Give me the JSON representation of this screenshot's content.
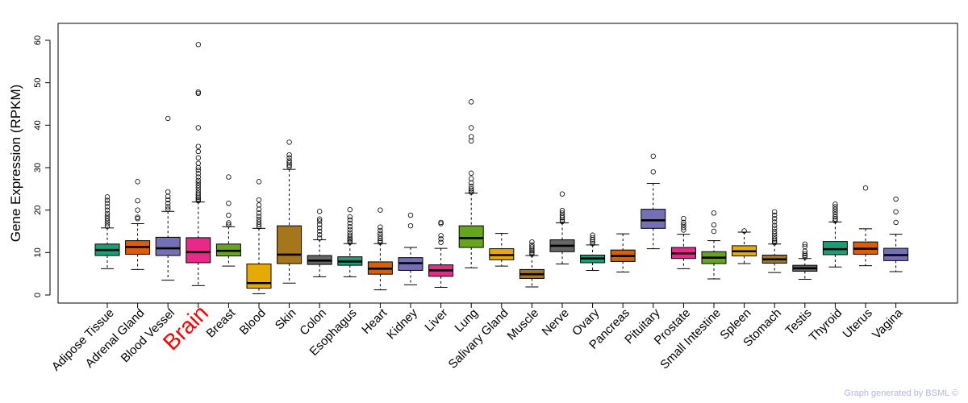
{
  "chart_data": {
    "type": "boxplot",
    "ylabel": "Gene Expression (RPKM)",
    "xlabel": "",
    "ylim": [
      0,
      60
    ],
    "yticks": [
      0,
      10,
      20,
      30,
      40,
      50,
      60
    ],
    "highlight": "Brain",
    "highlight_color": "#ff0000",
    "series": [
      {
        "name": "Adipose Tissue",
        "color": "#1b9e77",
        "q1": 9.3,
        "median": 10.6,
        "q3": 12.0,
        "lo": 6.2,
        "hi": 15.8,
        "outliers": [
          16.2,
          16.8,
          17.4,
          18.0,
          18.6,
          19.2,
          20.0,
          20.8,
          21.6,
          22.3,
          23.1
        ]
      },
      {
        "name": "Adrenal Gland",
        "color": "#d95f02",
        "q1": 9.6,
        "median": 11.3,
        "q3": 12.8,
        "lo": 6.0,
        "hi": 16.8,
        "outliers": [
          18.0,
          18.3,
          20.0,
          22.2,
          26.7
        ]
      },
      {
        "name": "Blood Vessel",
        "color": "#7570b3",
        "q1": 9.3,
        "median": 11.0,
        "q3": 13.6,
        "lo": 3.5,
        "hi": 19.7,
        "outliers": [
          20.2,
          20.8,
          21.6,
          22.4,
          23.2,
          24.3,
          41.6
        ]
      },
      {
        "name": "Brain",
        "color": "#e7298a",
        "q1": 7.6,
        "median": 10.1,
        "q3": 13.5,
        "lo": 2.2,
        "hi": 21.9,
        "outliers": [
          22.2,
          22.6,
          23.0,
          23.5,
          24.0,
          24.6,
          25.2,
          25.8,
          26.4,
          27.0,
          27.8,
          28.6,
          29.4,
          30.0,
          31.0,
          32.3,
          33.8,
          35.0,
          39.4,
          47.5,
          47.8,
          59.0
        ]
      },
      {
        "name": "Breast",
        "color": "#66a61e",
        "q1": 9.2,
        "median": 10.4,
        "q3": 12.0,
        "lo": 6.8,
        "hi": 16.1,
        "outliers": [
          16.5,
          17.0,
          18.8,
          21.6,
          27.8
        ]
      },
      {
        "name": "Blood",
        "color": "#e6ab02",
        "q1": 1.6,
        "median": 2.8,
        "q3": 7.3,
        "lo": 0.3,
        "hi": 15.7,
        "outliers": [
          16.1,
          16.6,
          17.2,
          17.8,
          18.5,
          19.3,
          20.2,
          21.2,
          22.4,
          26.7
        ]
      },
      {
        "name": "Skin",
        "color": "#a6761d",
        "q1": 7.4,
        "median": 9.5,
        "q3": 16.3,
        "lo": 2.8,
        "hi": 29.6,
        "outliers": [
          30.2,
          30.6,
          31.1,
          31.6,
          32.3,
          33.0,
          36.0
        ]
      },
      {
        "name": "Colon",
        "color": "#666666",
        "q1": 7.2,
        "median": 8.1,
        "q3": 9.3,
        "lo": 4.3,
        "hi": 13.0,
        "outliers": [
          13.4,
          14.2,
          15.0,
          15.8,
          16.6,
          17.4,
          17.9,
          19.7
        ]
      },
      {
        "name": "Esophagus",
        "color": "#1b9e77",
        "q1": 7.0,
        "median": 7.9,
        "q3": 9.0,
        "lo": 4.3,
        "hi": 12.1,
        "outliers": [
          12.4,
          12.8,
          13.2,
          13.6,
          14.1,
          14.7,
          15.4,
          16.1,
          16.9,
          17.7,
          18.4,
          20.1
        ]
      },
      {
        "name": "Heart",
        "color": "#d95f02",
        "q1": 4.9,
        "median": 6.2,
        "q3": 7.8,
        "lo": 1.2,
        "hi": 12.1,
        "outliers": [
          12.4,
          12.8,
          13.3,
          13.9,
          14.5,
          15.2,
          16.0,
          20.0
        ]
      },
      {
        "name": "Kidney",
        "color": "#7570b3",
        "q1": 5.8,
        "median": 7.5,
        "q3": 8.8,
        "lo": 2.4,
        "hi": 11.2,
        "outliers": [
          16.3,
          18.8
        ]
      },
      {
        "name": "Liver",
        "color": "#e7298a",
        "q1": 4.4,
        "median": 5.8,
        "q3": 7.1,
        "lo": 1.8,
        "hi": 11.0,
        "outliers": [
          12.4,
          13.2,
          14.0,
          16.8,
          17.1
        ]
      },
      {
        "name": "Lung",
        "color": "#66a61e",
        "q1": 11.2,
        "median": 13.4,
        "q3": 16.3,
        "lo": 6.4,
        "hi": 24.0,
        "outliers": [
          24.2,
          24.6,
          25.0,
          25.6,
          26.4,
          27.4,
          28.7,
          36.3,
          37.3,
          39.4,
          45.5
        ]
      },
      {
        "name": "Salivary Gland",
        "color": "#e6ab02",
        "q1": 8.3,
        "median": 9.4,
        "q3": 10.9,
        "lo": 6.8,
        "hi": 14.5,
        "outliers": []
      },
      {
        "name": "Muscle",
        "color": "#a6761d",
        "q1": 3.9,
        "median": 4.9,
        "q3": 6.0,
        "lo": 1.9,
        "hi": 9.3,
        "outliers": [
          9.6,
          10.0,
          10.4,
          10.8,
          11.3,
          11.8,
          12.5
        ]
      },
      {
        "name": "Nerve",
        "color": "#666666",
        "q1": 10.2,
        "median": 11.6,
        "q3": 13.0,
        "lo": 7.3,
        "hi": 17.0,
        "outliers": [
          17.3,
          17.7,
          18.2,
          18.7,
          19.3,
          19.9,
          23.8
        ]
      },
      {
        "name": "Ovary",
        "color": "#1b9e77",
        "q1": 7.6,
        "median": 8.6,
        "q3": 9.4,
        "lo": 5.8,
        "hi": 11.8,
        "outliers": [
          12.1,
          12.5,
          13.0,
          13.5,
          14.1
        ]
      },
      {
        "name": "Pancreas",
        "color": "#d95f02",
        "q1": 7.9,
        "median": 9.2,
        "q3": 10.6,
        "lo": 5.4,
        "hi": 14.4,
        "outliers": []
      },
      {
        "name": "Pituitary",
        "color": "#7570b3",
        "q1": 15.7,
        "median": 17.6,
        "q3": 20.2,
        "lo": 10.9,
        "hi": 26.3,
        "outliers": [
          29.0,
          32.7
        ]
      },
      {
        "name": "Prostate",
        "color": "#e7298a",
        "q1": 8.6,
        "median": 9.8,
        "q3": 11.2,
        "lo": 6.2,
        "hi": 14.3,
        "outliers": [
          15.3,
          15.9,
          16.5,
          17.1,
          18.0
        ]
      },
      {
        "name": "Small Intestine",
        "color": "#66a61e",
        "q1": 7.4,
        "median": 8.8,
        "q3": 10.2,
        "lo": 3.8,
        "hi": 12.8,
        "outliers": [
          15.0,
          16.5,
          19.3
        ]
      },
      {
        "name": "Spleen",
        "color": "#e6ab02",
        "q1": 9.2,
        "median": 10.3,
        "q3": 11.6,
        "lo": 7.4,
        "hi": 14.8,
        "outliers": [
          15.1
        ]
      },
      {
        "name": "Stomach",
        "color": "#a6761d",
        "q1": 7.5,
        "median": 8.4,
        "q3": 9.4,
        "lo": 5.3,
        "hi": 12.0,
        "outliers": [
          12.3,
          12.7,
          13.2,
          13.8,
          14.4,
          15.0,
          15.7,
          16.4,
          17.2,
          18.0,
          18.8,
          19.6
        ]
      },
      {
        "name": "Testis",
        "color": "#666666",
        "q1": 5.6,
        "median": 6.3,
        "q3": 7.0,
        "lo": 3.7,
        "hi": 8.6,
        "outliers": [
          8.9,
          9.3,
          9.7,
          10.3,
          11.4,
          12.0
        ]
      },
      {
        "name": "Thyroid",
        "color": "#1b9e77",
        "q1": 9.5,
        "median": 10.8,
        "q3": 12.6,
        "lo": 6.6,
        "hi": 17.2,
        "outliers": [
          17.5,
          17.9,
          18.4,
          19.0,
          19.6,
          20.2,
          20.8,
          21.4
        ]
      },
      {
        "name": "Uterus",
        "color": "#d95f02",
        "q1": 9.6,
        "median": 10.9,
        "q3": 12.5,
        "lo": 6.9,
        "hi": 15.6,
        "outliers": [
          25.2
        ]
      },
      {
        "name": "Vagina",
        "color": "#7570b3",
        "q1": 8.1,
        "median": 9.4,
        "q3": 11.0,
        "lo": 5.5,
        "hi": 14.3,
        "outliers": [
          17.1,
          19.6,
          22.6
        ]
      }
    ]
  },
  "credit": "Graph generated by BSML ©"
}
